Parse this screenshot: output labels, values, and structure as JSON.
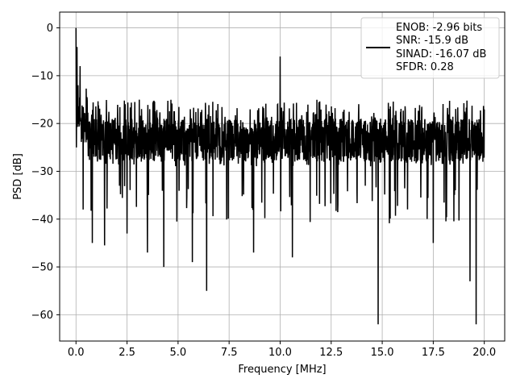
{
  "chart_data": {
    "type": "line",
    "title": "",
    "xlabel": "Frequency [MHz]",
    "ylabel": "PSD [dB]",
    "xlim": [
      -0.8,
      21.0
    ],
    "ylim": [
      -65.5,
      3.3
    ],
    "xticks": [
      0.0,
      2.5,
      5.0,
      7.5,
      10.0,
      12.5,
      15.0,
      17.5,
      20.0
    ],
    "xtick_labels": [
      "0.0",
      "2.5",
      "5.0",
      "7.5",
      "10.0",
      "12.5",
      "15.0",
      "17.5",
      "20.0"
    ],
    "yticks": [
      0,
      -10,
      -20,
      -30,
      -40,
      -50,
      -60
    ],
    "ytick_labels": [
      "0",
      "−10",
      "−20",
      "−30",
      "−40",
      "−50",
      "−60"
    ],
    "grid": true,
    "legend_position": "top-right",
    "legend_lines": [
      "ENOB: -2.96 bits",
      "SNR: -15.9 dB",
      "SINAD: -16.07 dB",
      "SFDR: 0.28"
    ],
    "series": [
      {
        "color": "#000000",
        "noise_floor_db": [
          -28,
          -19
        ],
        "peaks": [
          {
            "x": 0.0,
            "y": 0.0
          },
          {
            "x": 0.02,
            "y": -25
          },
          {
            "x": 0.05,
            "y": -4
          },
          {
            "x": 0.1,
            "y": -12
          },
          {
            "x": 0.2,
            "y": -8
          },
          {
            "x": 0.35,
            "y": -38
          },
          {
            "x": 0.8,
            "y": -45
          },
          {
            "x": 1.4,
            "y": -45.5
          },
          {
            "x": 2.5,
            "y": -43
          },
          {
            "x": 3.5,
            "y": -47
          },
          {
            "x": 4.3,
            "y": -50
          },
          {
            "x": 5.7,
            "y": -49
          },
          {
            "x": 6.4,
            "y": -55
          },
          {
            "x": 8.7,
            "y": -47
          },
          {
            "x": 10.0,
            "y": -6
          },
          {
            "x": 10.6,
            "y": -48
          },
          {
            "x": 14.8,
            "y": -62
          },
          {
            "x": 17.5,
            "y": -45
          },
          {
            "x": 19.3,
            "y": -53
          },
          {
            "x": 19.6,
            "y": -62
          }
        ]
      }
    ]
  }
}
